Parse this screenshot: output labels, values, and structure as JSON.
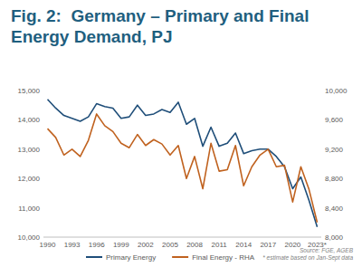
{
  "chart_data": {
    "type": "line",
    "title": "Fig. 2:  Germany – Primary and Final Energy Demand, PJ",
    "source": "Source: FGE, AGEB",
    "note": "* estimate based on Jan-Sept data",
    "categories": [
      "1990",
      null,
      null,
      "1993",
      null,
      null,
      "1996",
      null,
      null,
      "1999",
      null,
      null,
      "2002",
      null,
      null,
      "2005",
      null,
      null,
      "2008",
      null,
      null,
      "2011",
      null,
      null,
      "2014",
      null,
      null,
      "2017",
      null,
      null,
      "2020",
      null,
      null,
      "2023*"
    ],
    "series": [
      {
        "name": "Primary Energy",
        "color": "#1f4e79",
        "values": [
          14700,
          14400,
          14150,
          14050,
          13950,
          14100,
          14550,
          14450,
          14400,
          14050,
          14100,
          14500,
          14150,
          14200,
          14350,
          14250,
          14600,
          13850,
          14050,
          13100,
          13750,
          13100,
          13200,
          13550,
          12850,
          12950,
          13000,
          13000,
          12750,
          12400,
          11650,
          12050,
          11250,
          10350
        ]
      },
      {
        "name": "Final Energy - RHA",
        "color": "#c0621f",
        "axis": "y2",
        "values": [
          9480,
          9360,
          9120,
          9200,
          9100,
          9320,
          9680,
          9520,
          9440,
          9280,
          9220,
          9400,
          9250,
          9330,
          9270,
          9120,
          9250,
          8800,
          9100,
          8660,
          9280,
          8900,
          8920,
          9250,
          8700,
          8960,
          9120,
          9200,
          8960,
          8980,
          8480,
          8960,
          8650,
          8200
        ]
      }
    ],
    "ylim": [
      10000,
      15000
    ],
    "yticks": [
      {
        "value": 10000,
        "label": "10,000"
      },
      {
        "value": 11000,
        "label": "11,000"
      },
      {
        "value": 12000,
        "label": "12,000"
      },
      {
        "value": 13000,
        "label": "13,000"
      },
      {
        "value": 14000,
        "label": "14,000"
      },
      {
        "value": 15000,
        "label": "15,000"
      }
    ],
    "y2lim": [
      8000,
      10000
    ],
    "y2ticks": [
      {
        "value": 8000,
        "label": "8,000"
      },
      {
        "value": 8400,
        "label": "8,400"
      },
      {
        "value": 8800,
        "label": "8,800"
      },
      {
        "value": 9200,
        "label": "9,200"
      },
      {
        "value": 9600,
        "label": "9,600"
      },
      {
        "value": 10000,
        "label": "10,000"
      }
    ],
    "grid": false,
    "legend": "bottom"
  }
}
